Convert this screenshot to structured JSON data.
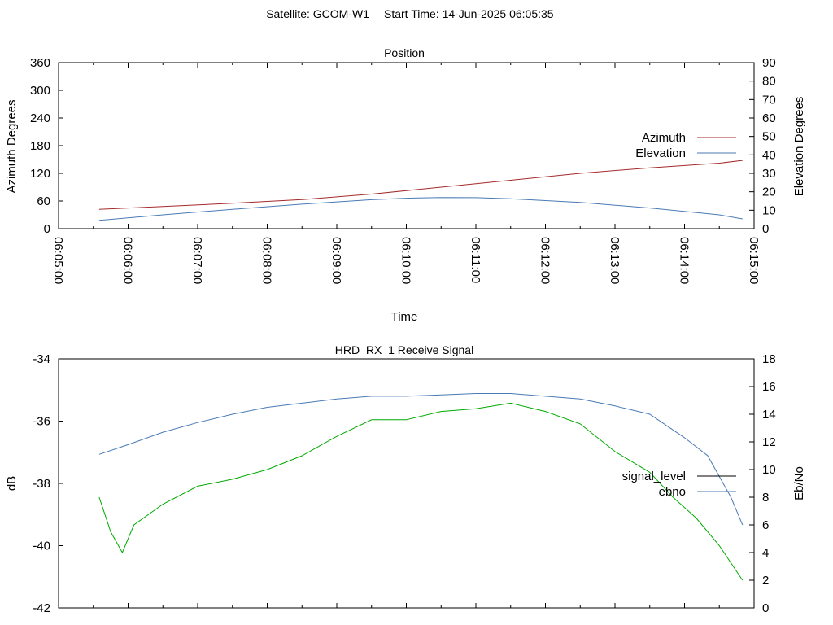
{
  "header": {
    "satellite": "Satellite: GCOM-W1",
    "start_time": "Start Time: 14-Jun-2025 06:05:35"
  },
  "chart_data": [
    {
      "type": "line",
      "title": "Position",
      "xlabel": "Time",
      "ylabel": "Azimuth Degrees",
      "y2label": "Elevation Degrees",
      "x_ticks": [
        "06:05:00",
        "06:06:00",
        "06:07:00",
        "06:08:00",
        "06:09:00",
        "06:10:00",
        "06:11:00",
        "06:12:00",
        "06:13:00",
        "06:14:00",
        "06:15:00"
      ],
      "xlim": [
        "06:05:00",
        "06:15:00"
      ],
      "ylim": [
        0,
        360
      ],
      "y_ticks": [
        0,
        60,
        120,
        180,
        240,
        300,
        360
      ],
      "y2lim": [
        0,
        90
      ],
      "y2_ticks": [
        0,
        10,
        20,
        30,
        40,
        50,
        60,
        70,
        80,
        90
      ],
      "grid": false,
      "legend": "right",
      "series": [
        {
          "name": "Azimuth",
          "axis": "y",
          "color": "#a52a2a",
          "x": [
            "06:05:35",
            "06:06:30",
            "06:07:30",
            "06:08:30",
            "06:09:30",
            "06:10:30",
            "06:11:30",
            "06:12:30",
            "06:13:30",
            "06:14:30",
            "06:14:50"
          ],
          "y": [
            42,
            48,
            55,
            63,
            75,
            90,
            105,
            120,
            132,
            142,
            148
          ]
        },
        {
          "name": "Elevation",
          "axis": "y2",
          "color": "#4a7ab5",
          "x": [
            "06:05:35",
            "06:06:30",
            "06:07:30",
            "06:08:30",
            "06:09:30",
            "06:10:00",
            "06:10:30",
            "06:11:00",
            "06:11:30",
            "06:12:30",
            "06:13:30",
            "06:14:30",
            "06:14:50"
          ],
          "y": [
            4.5,
            7.5,
            10.5,
            13.3,
            15.7,
            16.5,
            16.9,
            16.8,
            16.2,
            14.2,
            11.2,
            7.5,
            5.3
          ]
        }
      ]
    },
    {
      "type": "line",
      "title": "HRD_RX_1 Receive Signal",
      "ylabel": "dB",
      "y2label": "Eb/No",
      "xlim": [
        "06:05:00",
        "06:15:00"
      ],
      "ylim": [
        -42,
        -34
      ],
      "y_ticks": [
        -42,
        -40,
        -38,
        -36,
        -34
      ],
      "y2lim": [
        0,
        18
      ],
      "y2_ticks": [
        0,
        2,
        4,
        6,
        8,
        10,
        12,
        14,
        16,
        18
      ],
      "grid": false,
      "legend": "right",
      "series": [
        {
          "name": "signal_level",
          "axis": "y",
          "color": "#000000",
          "x": [],
          "y": []
        },
        {
          "name": "ebno",
          "axis": "y2",
          "color": "#4a7ab5",
          "x": [
            "06:05:35",
            "06:06:00",
            "06:06:30",
            "06:07:00",
            "06:07:30",
            "06:08:00",
            "06:08:30",
            "06:09:00",
            "06:09:30",
            "06:10:00",
            "06:10:30",
            "06:11:00",
            "06:11:30",
            "06:12:00",
            "06:12:30",
            "06:13:00",
            "06:13:30",
            "06:14:00",
            "06:14:20",
            "06:14:40",
            "06:14:50"
          ],
          "y": [
            11.1,
            11.8,
            12.7,
            13.4,
            14.0,
            14.5,
            14.8,
            15.1,
            15.3,
            15.3,
            15.4,
            15.5,
            15.5,
            15.3,
            15.1,
            14.6,
            14.0,
            12.3,
            11.0,
            8.0,
            6.0
          ]
        },
        {
          "name": "",
          "axis": "y2",
          "color": "#00aa00",
          "x": [
            "06:05:35",
            "06:05:45",
            "06:05:55",
            "06:06:05",
            "06:06:30",
            "06:07:00",
            "06:07:30",
            "06:08:00",
            "06:08:30",
            "06:09:00",
            "06:09:30",
            "06:10:00",
            "06:10:30",
            "06:11:00",
            "06:11:30",
            "06:12:00",
            "06:12:30",
            "06:13:00",
            "06:13:30",
            "06:13:50",
            "06:14:10",
            "06:14:30",
            "06:14:50"
          ],
          "y": [
            8.0,
            5.5,
            4.0,
            6.0,
            7.5,
            8.8,
            9.3,
            10.0,
            11.0,
            12.4,
            13.6,
            13.6,
            14.2,
            14.4,
            14.8,
            14.2,
            13.3,
            11.3,
            9.8,
            8.0,
            6.5,
            4.5,
            2.0
          ]
        }
      ]
    }
  ]
}
